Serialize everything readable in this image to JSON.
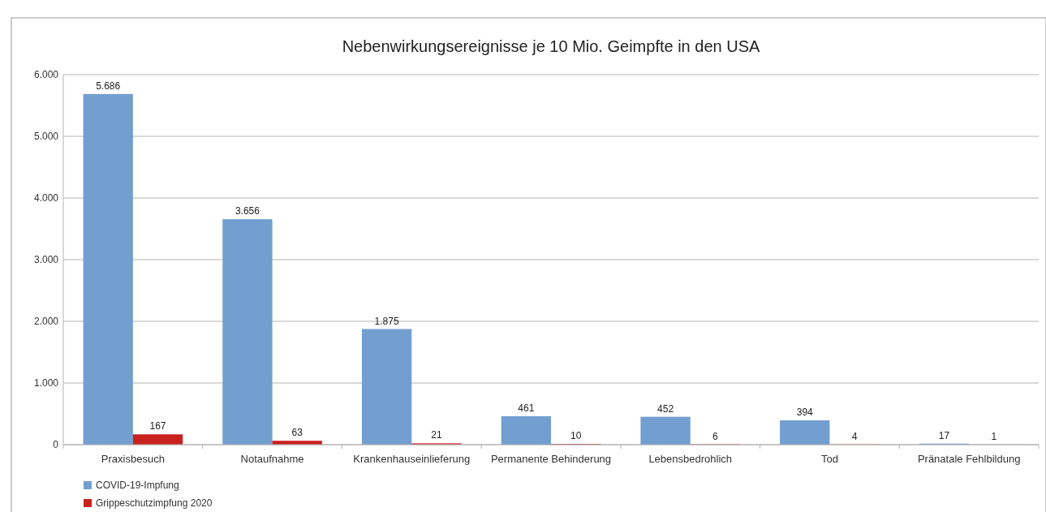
{
  "chart_data": {
    "type": "bar",
    "title": "Nebenwirkungsereignisse je 10 Mio. Geimpfte in den USA",
    "categories": [
      "Praxisbesuch",
      "Notaufnahme",
      "Krankenhauseinlieferung",
      "Permanente Behinderung",
      "Lebensbedrohlich",
      "Tod",
      "Pränatale Fehlbildung"
    ],
    "series": [
      {
        "name": "COVID-19-Impfung",
        "color": "#729fcf",
        "values": [
          5686,
          3656,
          1875,
          461,
          452,
          394,
          17
        ],
        "value_labels": [
          "5.686",
          "3.656",
          "1.875",
          "461",
          "452",
          "394",
          "17"
        ]
      },
      {
        "name": "Grippeschutzimpfung 2020",
        "color": "#c9211e",
        "values": [
          167,
          63,
          21,
          10,
          6,
          4,
          1
        ],
        "value_labels": [
          "167",
          "63",
          "21",
          "10",
          "6",
          "4",
          "1"
        ]
      }
    ],
    "ylim": [
      0,
      6000
    ],
    "yticks": [
      0,
      {
        "value": 1000,
        "label": "1.000"
      },
      {
        "value": 2000,
        "label": "2.000"
      },
      {
        "value": 3000,
        "label": "3.000"
      },
      {
        "value": 4000,
        "label": "4.000"
      },
      {
        "value": 5000,
        "label": "5.000"
      },
      {
        "value": 6000,
        "label": "6.000"
      }
    ],
    "grid": "y",
    "legend": "bottom left"
  }
}
